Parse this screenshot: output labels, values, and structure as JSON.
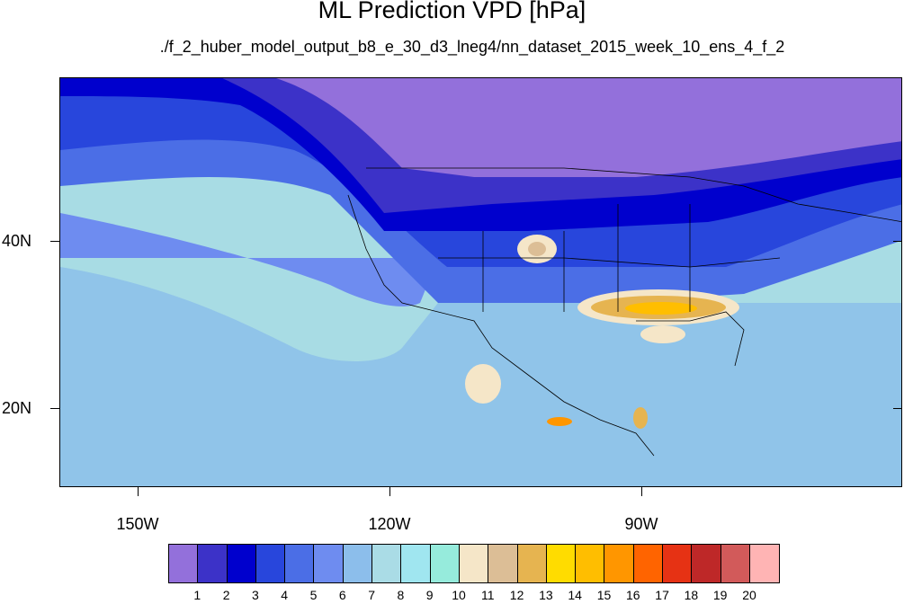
{
  "title": "ML Prediction VPD [hPa]",
  "subtitle": "./f_2_huber_model_output_b8_e_30_d3_lneg4/nn_dataset_2015_week_10_ens_4_f_2",
  "lat_labels": [
    "40N",
    "20N"
  ],
  "lon_labels": [
    "150W",
    "120W",
    "90W"
  ],
  "colorbar": {
    "levels": [
      "1",
      "2",
      "3",
      "4",
      "5",
      "6",
      "7",
      "8",
      "9",
      "10",
      "11",
      "12",
      "13",
      "14",
      "15",
      "16",
      "17",
      "18",
      "19",
      "20"
    ],
    "colors": [
      "#9370DB",
      "#3C32C8",
      "#0000CD",
      "#2846DC",
      "#4B6EE6",
      "#6E8CF0",
      "#8CBEEB",
      "#AADCE6",
      "#A0E6F0",
      "#96EBDC",
      "#F5E6C8",
      "#DCBE96",
      "#E6B450",
      "#FFDC00",
      "#FFBE00",
      "#FF9600",
      "#FF6400",
      "#E63214",
      "#BE2828",
      "#D25A5A",
      "#FFB4B4"
    ]
  },
  "map": {
    "projection": "cylindrical equidistant",
    "lon_range": [
      -160,
      -60
    ],
    "lat_range": [
      11,
      60
    ]
  }
}
